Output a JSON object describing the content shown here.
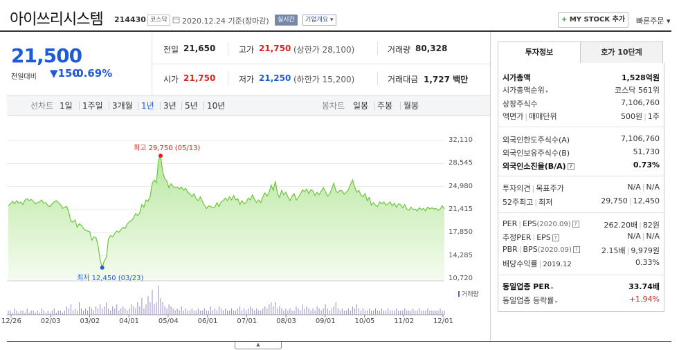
{
  "header": {
    "company_name": "아이쓰리시스템",
    "code": "214430",
    "market": "코스닥",
    "date_text": "2020.12.24 기준(장마감)",
    "realtime_label": "실시간",
    "company_overview_label": "기업개요",
    "mystock_label": "MY STOCK 추가",
    "quick_order_label": "빠른주문"
  },
  "price": {
    "current": "21,500",
    "prev_label": "전일대비",
    "change": "150",
    "change_pct": "-0.69%",
    "color": "#1e5bd8"
  },
  "quote": {
    "prev_close": {
      "label": "전일",
      "value": "21,650"
    },
    "high": {
      "label": "고가",
      "value": "21,750",
      "sub": "(상한가 28,100)"
    },
    "volume": {
      "label": "거래량",
      "value": "80,328"
    },
    "open": {
      "label": "시가",
      "value": "21,750"
    },
    "low": {
      "label": "저가",
      "value": "21,250",
      "sub": "(하한가 15,200)"
    },
    "amount": {
      "label": "거래대금",
      "value": "1,727 백만"
    }
  },
  "period_tabs": {
    "line_label": "선차트",
    "line_items": [
      "1일",
      "1주일",
      "3개월",
      "1년",
      "3년",
      "5년",
      "10년"
    ],
    "selected": "1년",
    "candle_label": "봉차트",
    "candle_items": [
      "일봉",
      "주봉",
      "월봉"
    ]
  },
  "chart_data": {
    "type": "area",
    "title": "",
    "y_ticks": [
      "32,110",
      "28,545",
      "24,980",
      "21,415",
      "17,850",
      "14,285",
      "10,720"
    ],
    "ylim": [
      10720,
      32110
    ],
    "x_ticks": [
      "12/26",
      "02/03",
      "03/02",
      "04/01",
      "05/04",
      "06/01",
      "07/01",
      "08/03",
      "09/01",
      "10/05",
      "11/02",
      "12/01"
    ],
    "high_label": "최고 29,750 (05/13)",
    "low_label": "최저 12,450 (03/23)",
    "volume_label": "거래량",
    "series": [
      {
        "values": [
          22000,
          22300,
          22700,
          22300,
          22800,
          22400,
          22600,
          22200,
          22900,
          23100,
          22800,
          23000,
          22700,
          22300,
          22500,
          22600,
          22900,
          22400,
          22500,
          22000,
          21900,
          22300,
          22600,
          22800,
          22500,
          22200,
          21600,
          21800,
          21900,
          21000,
          19600,
          19500,
          19800,
          18700,
          19200,
          19000,
          18500,
          18200,
          18100,
          18000,
          16700,
          17200,
          17100,
          15900,
          13700,
          12450,
          13500,
          14000,
          16900,
          17400,
          17200,
          17700,
          18100,
          17900,
          18300,
          18700,
          18500,
          19200,
          19500,
          19700,
          20100,
          20800,
          20500,
          20900,
          22200,
          21800,
          22900,
          22700,
          23500,
          25500,
          26000,
          25600,
          29100,
          29750,
          27200,
          26200,
          25800,
          24800,
          25400,
          25000,
          24800,
          24900,
          24600,
          24900,
          24400,
          24700,
          24100,
          23900,
          23400,
          23900,
          23100,
          22800,
          23400,
          22700,
          22100,
          21600,
          22000,
          21900,
          21700,
          21800,
          22500,
          21900,
          22600,
          22800,
          23200,
          22800,
          23400,
          22900,
          23600,
          22900,
          23100,
          22200,
          22800,
          22300,
          22500,
          23200,
          22900,
          23700,
          23000,
          22500,
          22900,
          22500,
          23400,
          24000,
          23500,
          24100,
          25200,
          24400,
          25800,
          23900,
          23300,
          24400,
          23700,
          24100,
          23400,
          22800,
          23500,
          23900,
          22900,
          23300,
          23800,
          24500,
          24200,
          24600,
          23900,
          24500,
          24300,
          23600,
          24100,
          23700,
          24300,
          24800,
          24200,
          23500,
          23800,
          24600,
          25500,
          24300,
          24000,
          24400,
          24300,
          23800,
          24100,
          24500,
          25300,
          26000,
          24900,
          24100,
          24400,
          23700,
          23400,
          23900,
          22800,
          23300,
          22100,
          22500,
          22100,
          21900,
          22600,
          22300,
          22600,
          22100,
          22300,
          22600,
          22000,
          22400,
          21800,
          22300,
          22200,
          21700,
          22200,
          21500,
          21300,
          21800,
          21400,
          21500,
          21200,
          21700,
          21400,
          21600,
          21200,
          21800,
          21500,
          21700,
          21500,
          21600,
          21300,
          21500,
          22000,
          21500
        ],
        "volume": [
          2,
          2,
          1,
          3,
          2,
          1,
          2,
          2,
          1,
          3,
          1,
          2,
          2,
          1,
          2,
          1,
          3,
          2,
          1,
          2,
          1,
          2,
          3,
          1,
          2,
          2,
          1,
          2,
          4,
          3,
          5,
          2,
          3,
          2,
          6,
          3,
          2,
          3,
          2,
          4,
          3,
          2,
          4,
          3,
          5,
          3,
          4,
          6,
          3,
          2,
          4,
          3,
          5,
          2,
          3,
          4,
          3,
          2,
          3,
          5,
          4,
          3,
          6,
          4,
          8,
          3,
          5,
          9,
          6,
          12,
          5,
          6,
          14,
          8,
          6,
          4,
          3,
          5,
          4,
          3,
          2,
          3,
          2,
          4,
          2,
          3,
          2,
          2,
          3,
          2,
          2,
          3,
          2,
          2,
          3,
          2,
          2,
          4,
          2,
          3,
          2,
          4,
          3,
          2,
          3,
          2,
          2,
          3,
          2,
          2,
          3,
          4,
          2,
          3,
          2,
          3,
          4,
          3,
          2,
          3,
          2,
          2,
          3,
          4,
          3,
          5,
          6,
          4,
          6,
          3,
          4,
          3,
          2,
          3,
          2,
          3,
          2,
          2,
          4,
          3,
          2,
          5,
          3,
          4,
          3,
          2,
          3,
          2,
          4,
          3,
          2,
          3,
          5,
          3,
          2,
          3,
          4,
          6,
          3,
          2,
          3,
          2,
          2,
          3,
          2,
          4,
          3,
          5,
          3,
          2,
          3,
          2,
          2,
          3,
          2,
          2,
          3,
          2,
          2,
          3,
          2,
          2,
          3,
          2,
          2,
          2,
          3,
          2,
          2,
          2,
          3,
          2,
          2,
          2,
          3,
          2,
          2,
          3,
          2,
          2,
          2,
          3,
          2,
          2,
          2,
          2,
          2,
          3,
          2,
          2
        ]
      }
    ]
  },
  "investment_tabs": [
    "투자정보",
    "호가 10단계"
  ],
  "info": {
    "market_cap": {
      "label": "시가총액",
      "value": "1,528억원"
    },
    "market_cap_rank": {
      "label": "시가총액순위",
      "value": "코스닥 561위"
    },
    "shares": {
      "label": "상장주식수",
      "value": "7,106,760"
    },
    "par_label": "액면가",
    "unit_label": "매매단위",
    "par_value": "500원",
    "unit_value": "1주",
    "foreign_limit": {
      "label": "외국인한도주식수(A)",
      "value": "7,106,760"
    },
    "foreign_hold": {
      "label": "외국인보유주식수(B)",
      "value": "51,730"
    },
    "foreign_ratio": {
      "label": "외국인소진율(B/A)",
      "value": "0.73%"
    },
    "opinion_label": "투자의견",
    "target_label": "목표주가",
    "opinion_value": "N/A",
    "target_value": "N/A",
    "w52_high_label": "52주최고",
    "w52_low_label": "최저",
    "w52_high": "29,750",
    "w52_low": "12,450",
    "per_label": "PER",
    "eps_label": "EPS",
    "per_date": "(2020.09)",
    "per_value": "262.20배",
    "eps_value": "82원",
    "est_per_label": "추정PER",
    "est_eps_label": "EPS",
    "est_per_value": "N/A",
    "est_eps_value": "N/A",
    "pbr_label": "PBR",
    "bps_label": "BPS",
    "pbr_date": "(2020.09)",
    "pbr_value": "2.15배",
    "bps_value": "9,979원",
    "dividend_label": "배당수익률",
    "dividend_date": "2019.12",
    "dividend_value": "0.33%",
    "sector_per": {
      "label": "동일업종 PER",
      "value": "33.74배"
    },
    "sector_change": {
      "label": "동일업종 등락률",
      "value": "+1.94%"
    }
  }
}
